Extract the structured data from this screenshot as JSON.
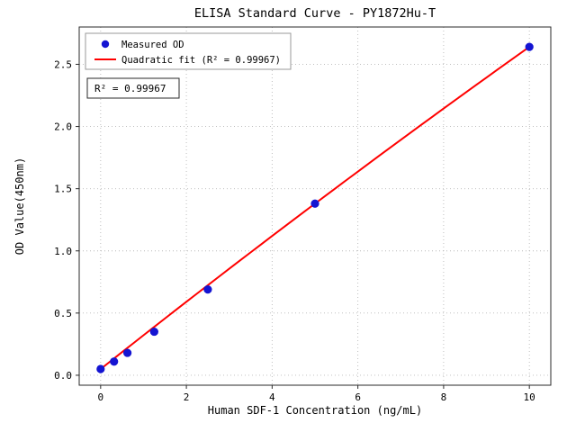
{
  "chart_data": {
    "type": "scatter",
    "title": "ELISA Standard Curve - PY1872Hu-T",
    "xlabel": "Human SDF-1 Concentration (ng/mL)",
    "ylabel": "OD Value(450nm)",
    "xlim": [
      -0.5,
      10.5
    ],
    "ylim": [
      -0.08,
      2.8
    ],
    "xticks": [
      0,
      2,
      4,
      6,
      8,
      10
    ],
    "yticks": [
      0.0,
      0.5,
      1.0,
      1.5,
      2.0,
      2.5
    ],
    "grid": true,
    "grid_style": "dotted",
    "legend_position": "upper-left",
    "annotation": "R² = 0.99967",
    "series": [
      {
        "name": "Measured OD",
        "type": "scatter",
        "color": "#1414d2",
        "x": [
          0,
          0.3125,
          0.625,
          1.25,
          2.5,
          5,
          10
        ],
        "y": [
          0.05,
          0.11,
          0.18,
          0.35,
          0.69,
          1.38,
          2.64
        ]
      },
      {
        "name": "Quadratic fit (R² = 0.99967)",
        "type": "line",
        "color": "#ff0000",
        "fit": {
          "a": 0.05,
          "b": 0.273,
          "c": -0.0014,
          "x_start": 0,
          "x_end": 10
        }
      }
    ],
    "colors": {
      "grid": "#b8b8b8",
      "spine": "#2a2a2a",
      "background": "#ffffff"
    }
  }
}
